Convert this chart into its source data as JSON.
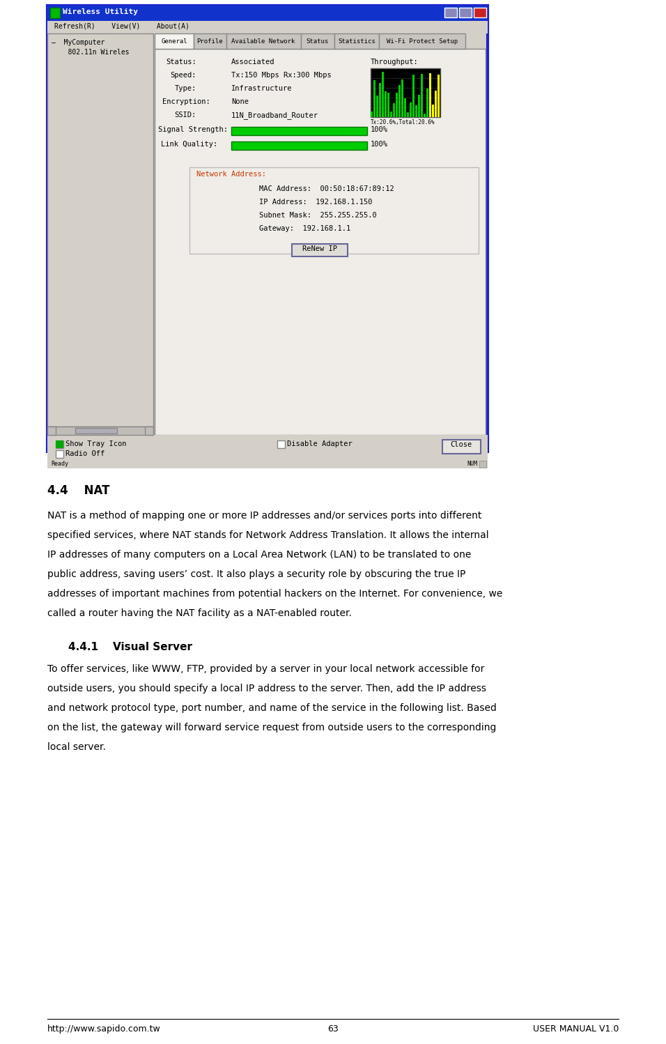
{
  "bg_color": "#ffffff",
  "footer_url": "http://www.sapido.com.tw",
  "footer_page": "63",
  "footer_manual": "USER MANUAL V1.0",
  "section_heading": "4.4    NAT",
  "subsection_heading": "4.4.1    Visual Server",
  "body_text_lines": [
    "NAT is a method of mapping one or more IP addresses and/or services ports into different",
    "specified services, where NAT stands for Network Address Translation. It allows the internal",
    "IP addresses of many computers on a Local Area Network (LAN) to be translated to one",
    "public address, saving users’ cost. It also plays a security role by obscuring the true IP",
    "addresses of important machines from potential hackers on the Internet. For convenience, we",
    "called a router having the NAT facility as a NAT-enabled router."
  ],
  "sub_body_text_lines": [
    "To offer services, like WWW, FTP, provided by a server in your local network accessible for",
    "outside users, you should specify a local IP address to the server. Then, add the IP address",
    "and network protocol type, port number, and name of the service in the following list. Based",
    "on the list, the gateway will forward service request from outside users to the corresponding",
    "local server."
  ],
  "win_title": "Wireless Utility",
  "menu_items": "Refresh(R)    View(V)    About(A)",
  "tab_labels": [
    "General",
    "Profile",
    "Available Network",
    "Status",
    "Statistics",
    "Wi-Fi Protect Setup"
  ],
  "tree_item1": "–  MyComputer",
  "tree_item2": "    802.11n Wireles",
  "status_label": "Status:",
  "status_value": "Associated",
  "speed_label": "Speed:",
  "speed_value": "Tx:150 Mbps Rx:300 Mbps",
  "type_label": "Type:",
  "type_value": "Infrastructure",
  "enc_label": "Encryption:",
  "enc_value": "None",
  "ssid_label": "SSID:",
  "ssid_value": "11N_Broadband_Router",
  "ss_label": "Signal Strength:",
  "lq_label": "Link Quality:",
  "pct_100": "100%",
  "throughput_label": "Throughput:",
  "tx_label": "Tx:20.6%,Total:20.6%",
  "net_addr_label": "Network Address:",
  "mac_line": "MAC Address:  00:50:18:67:89:12",
  "ip_line": "IP Address:  192.168.1.150",
  "sm_line": "Subnet Mask:  255.255.255.0",
  "gw_line": "Gateway:  192.168.1.1",
  "renew_btn": "ReNew IP",
  "show_tray": "Show Tray Icon",
  "radio_off": "Radio Off",
  "disable_adapter": "Disable Adapter",
  "close_btn": "Close",
  "ready_text": "Ready",
  "num_text": "NUM"
}
